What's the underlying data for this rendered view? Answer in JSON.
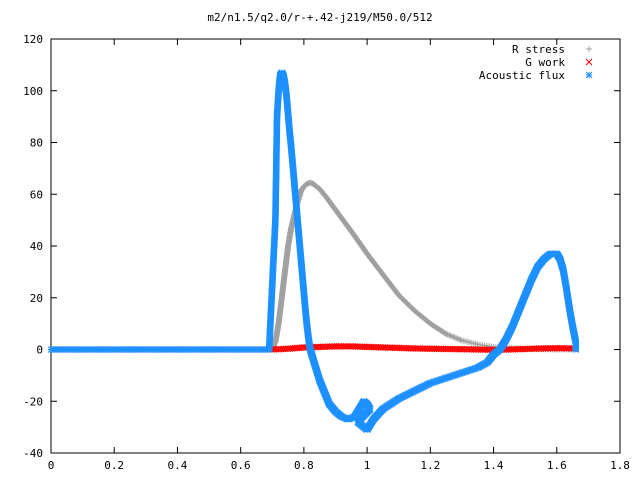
{
  "chart_data": {
    "type": "scatter",
    "title": "m2/n1.5/q2.0/r-+.42-j219/M50.0/512",
    "xlabel": "",
    "ylabel": "",
    "xlim": [
      0,
      1.8
    ],
    "ylim": [
      -40,
      120
    ],
    "x_ticks": [
      "0",
      "0.2",
      "0.4",
      "0.6",
      "0.8",
      "1",
      "1.2",
      "1.4",
      "1.6",
      "1.8"
    ],
    "y_ticks": [
      "-40",
      "-20",
      "0",
      "20",
      "40",
      "60",
      "80",
      "100",
      "120"
    ],
    "grid": false,
    "legend_position": "top-right",
    "series": [
      {
        "name": "R stress",
        "marker": "+",
        "color": "#a0a0a0",
        "points": [
          [
            0,
            0
          ],
          [
            0.1,
            0
          ],
          [
            0.2,
            0
          ],
          [
            0.3,
            0
          ],
          [
            0.4,
            0
          ],
          [
            0.5,
            0
          ],
          [
            0.6,
            0
          ],
          [
            0.7,
            0
          ],
          [
            0.71,
            3
          ],
          [
            0.72,
            10
          ],
          [
            0.73,
            20
          ],
          [
            0.74,
            30
          ],
          [
            0.75,
            40
          ],
          [
            0.76,
            47
          ],
          [
            0.77,
            52
          ],
          [
            0.78,
            57
          ],
          [
            0.79,
            61
          ],
          [
            0.8,
            63
          ],
          [
            0.81,
            64
          ],
          [
            0.82,
            64.5
          ],
          [
            0.83,
            64
          ],
          [
            0.85,
            62
          ],
          [
            0.87,
            59
          ],
          [
            0.9,
            54
          ],
          [
            0.93,
            49
          ],
          [
            0.96,
            44
          ],
          [
            1.0,
            37
          ],
          [
            1.05,
            29
          ],
          [
            1.1,
            21
          ],
          [
            1.15,
            15
          ],
          [
            1.2,
            10
          ],
          [
            1.25,
            6
          ],
          [
            1.3,
            3.5
          ],
          [
            1.35,
            2
          ],
          [
            1.4,
            1
          ],
          [
            1.45,
            0.5
          ],
          [
            1.5,
            0.2
          ],
          [
            1.55,
            0.1
          ],
          [
            1.6,
            0
          ],
          [
            1.66,
            0
          ]
        ]
      },
      {
        "name": "G work",
        "marker": "x",
        "color": "#ff0000",
        "points": [
          [
            0.7,
            0
          ],
          [
            0.75,
            0.3
          ],
          [
            0.8,
            0.8
          ],
          [
            0.85,
            1.0
          ],
          [
            0.9,
            1.2
          ],
          [
            0.95,
            1.2
          ],
          [
            1.0,
            1.0
          ],
          [
            1.05,
            0.8
          ],
          [
            1.1,
            0.6
          ],
          [
            1.15,
            0.4
          ],
          [
            1.2,
            0.3
          ],
          [
            1.25,
            0.2
          ],
          [
            1.3,
            0.1
          ],
          [
            1.35,
            0
          ],
          [
            1.4,
            -0.1
          ],
          [
            1.45,
            0
          ],
          [
            1.5,
            0.2
          ],
          [
            1.55,
            0.4
          ],
          [
            1.6,
            0.5
          ],
          [
            1.66,
            0.4
          ]
        ]
      },
      {
        "name": "Acoustic flux",
        "marker": "*",
        "color": "#1e90ff",
        "points": [
          [
            0,
            0
          ],
          [
            0.1,
            0
          ],
          [
            0.2,
            0
          ],
          [
            0.3,
            0
          ],
          [
            0.4,
            0
          ],
          [
            0.5,
            0
          ],
          [
            0.6,
            0
          ],
          [
            0.69,
            0
          ],
          [
            0.71,
            50.5
          ],
          [
            0.715,
            90
          ],
          [
            0.72,
            100
          ],
          [
            0.725,
            106
          ],
          [
            0.73,
            107
          ],
          [
            0.735,
            106
          ],
          [
            0.74,
            103
          ],
          [
            0.745,
            98
          ],
          [
            0.75,
            91
          ],
          [
            0.755,
            84
          ],
          [
            0.76,
            78
          ],
          [
            0.765,
            71
          ],
          [
            0.77,
            64
          ],
          [
            0.775,
            57
          ],
          [
            0.78,
            50
          ],
          [
            0.785,
            43
          ],
          [
            0.79,
            36
          ],
          [
            0.795,
            29
          ],
          [
            0.8,
            22
          ],
          [
            0.805,
            15
          ],
          [
            0.81,
            9
          ],
          [
            0.815,
            4
          ],
          [
            0.82,
            0
          ],
          [
            0.83,
            -4
          ],
          [
            0.84,
            -8
          ],
          [
            0.85,
            -12
          ],
          [
            0.86,
            -15
          ],
          [
            0.87,
            -18
          ],
          [
            0.88,
            -21
          ],
          [
            0.9,
            -24
          ],
          [
            0.92,
            -26
          ],
          [
            0.94,
            -27
          ],
          [
            0.96,
            -26
          ],
          [
            0.98,
            -22
          ],
          [
            0.99,
            -20
          ],
          [
            1.0,
            -21
          ],
          [
            1.01,
            -23
          ],
          [
            0.97,
            -28
          ],
          [
            0.99,
            -30
          ],
          [
            1.0,
            -31
          ],
          [
            1.02,
            -27
          ],
          [
            1.05,
            -23
          ],
          [
            1.1,
            -19
          ],
          [
            1.15,
            -16
          ],
          [
            1.2,
            -13
          ],
          [
            1.25,
            -11
          ],
          [
            1.3,
            -9
          ],
          [
            1.35,
            -7
          ],
          [
            1.38,
            -5
          ],
          [
            1.4,
            -2
          ],
          [
            1.42,
            0
          ],
          [
            1.44,
            4
          ],
          [
            1.46,
            9
          ],
          [
            1.48,
            15
          ],
          [
            1.5,
            21
          ],
          [
            1.52,
            27
          ],
          [
            1.54,
            32
          ],
          [
            1.56,
            35
          ],
          [
            1.58,
            37
          ],
          [
            1.6,
            37
          ],
          [
            1.61,
            35
          ],
          [
            1.62,
            31
          ],
          [
            1.63,
            24
          ],
          [
            1.64,
            16
          ],
          [
            1.65,
            9
          ],
          [
            1.66,
            3
          ],
          [
            1.66,
            0
          ]
        ]
      }
    ]
  }
}
